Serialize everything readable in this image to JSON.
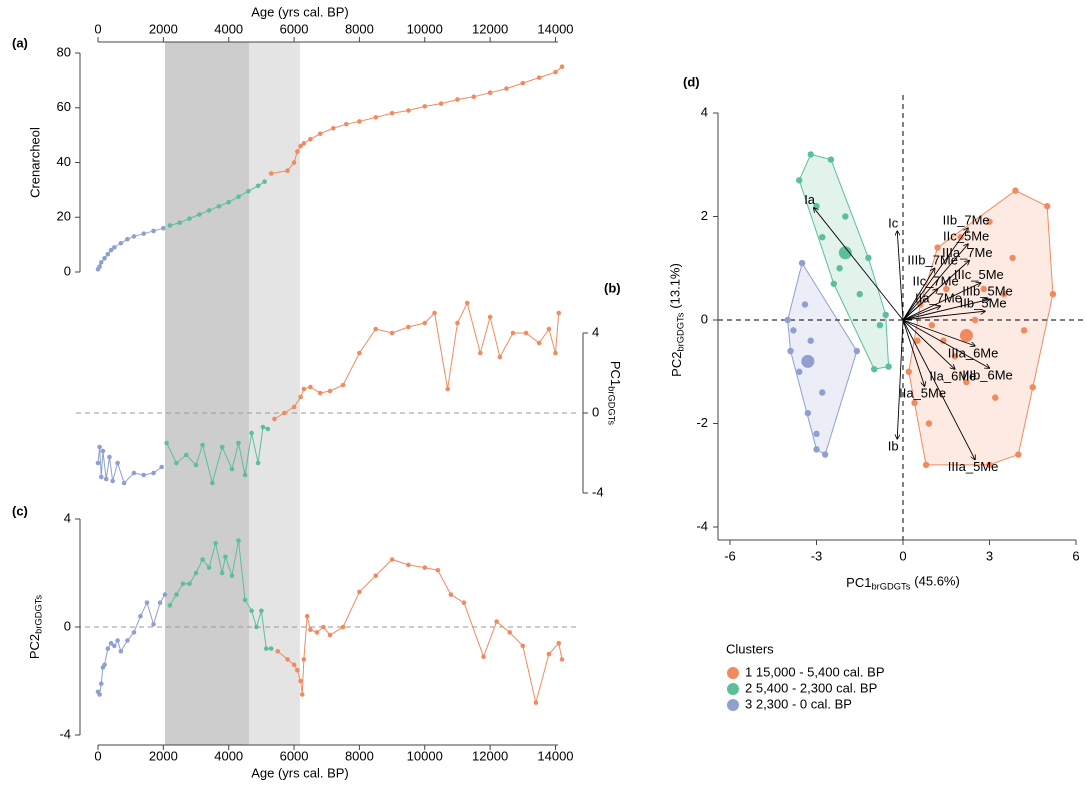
{
  "chart_data": [
    {
      "type": "line",
      "label": "(a)",
      "xlabel": "Age (yrs cal. BP)",
      "ylabel": "Crenarcheol",
      "xlim": [
        0,
        14200
      ],
      "xticks": [
        0,
        2000,
        4000,
        6000,
        8000,
        10000,
        12000,
        14000
      ],
      "ylim": [
        0,
        80
      ],
      "yticks": [
        0,
        20,
        40,
        60,
        80
      ],
      "shaded_ranges": [
        {
          "from": 2050,
          "to": 4620,
          "color": "#cdcdcd"
        },
        {
          "from": 4620,
          "to": 6180,
          "color": "#e4e4e4"
        }
      ],
      "series": [
        {
          "color": "#8fa0d0",
          "x": [
            0,
            50,
            100,
            200,
            300,
            400,
            500,
            700,
            900,
            1100,
            1400,
            1700,
            2000
          ],
          "values": [
            1,
            2,
            3.5,
            5,
            6.5,
            8,
            9,
            10.5,
            12,
            13,
            14,
            15,
            16
          ]
        },
        {
          "color": "#5cbf98",
          "x": [
            2200,
            2500,
            2800,
            3100,
            3400,
            3700,
            4000,
            4300,
            4600,
            4900,
            5100
          ],
          "values": [
            17,
            18,
            19.5,
            21,
            22.5,
            24,
            25.5,
            27.5,
            29.5,
            31.5,
            33
          ]
        },
        {
          "color": "#f28a5f",
          "x": [
            5300,
            5800,
            6000,
            6100,
            6200,
            6300,
            6500,
            6800,
            7200,
            7600,
            8000,
            8500,
            9000,
            9500,
            10000,
            10500,
            11000,
            11500,
            12000,
            12500,
            13000,
            13500,
            14000,
            14200
          ],
          "values": [
            36,
            37,
            40,
            44,
            46,
            47,
            48.5,
            50.5,
            52.5,
            54,
            55,
            56.5,
            58,
            59,
            60.5,
            61.5,
            63,
            64,
            65.5,
            67,
            69,
            71,
            73,
            75
          ]
        }
      ]
    },
    {
      "type": "line",
      "label": "(b)",
      "ylabel": {
        "text": "PC1",
        "sub": "brGDGTs"
      },
      "xlim": [
        0,
        14200
      ],
      "ylim": [
        -4,
        6
      ],
      "yticks": [
        -4,
        0,
        4
      ],
      "zero_line": true,
      "series": [
        {
          "color": "#8fa0d0",
          "x": [
            0,
            50,
            100,
            150,
            250,
            350,
            450,
            600,
            800,
            1100,
            1400,
            1700,
            1950
          ],
          "values": [
            -2.5,
            -1.7,
            -3.2,
            -1.9,
            -3.3,
            -2.2,
            -3.4,
            -2.5,
            -3.5,
            -3.0,
            -3.1,
            -3.0,
            -2.7
          ]
        },
        {
          "color": "#5cbf98",
          "x": [
            2100,
            2400,
            2700,
            3000,
            3200,
            3500,
            3800,
            4100,
            4300,
            4500,
            4700,
            4900,
            5050,
            5200
          ],
          "values": [
            -1.5,
            -2.5,
            -2.1,
            -2.6,
            -1.6,
            -3.5,
            -1.7,
            -2.8,
            -1.5,
            -3.1,
            -1.0,
            -2.5,
            -0.7,
            -0.8
          ]
        },
        {
          "color": "#f28a5f",
          "x": [
            5400,
            5700,
            6000,
            6200,
            6300,
            6500,
            6800,
            7100,
            7500,
            8000,
            8500,
            9000,
            9500,
            10000,
            10300,
            10700,
            11000,
            11300,
            11700,
            12000,
            12300,
            12700,
            13100,
            13500,
            13800,
            14000,
            14100
          ],
          "values": [
            -0.3,
            0,
            0.3,
            0.8,
            1.2,
            1.3,
            1.0,
            1.1,
            1.4,
            3.0,
            4.2,
            4.0,
            4.3,
            4.5,
            5.0,
            1.2,
            4.5,
            5.5,
            3.0,
            4.8,
            2.8,
            4.0,
            4.0,
            3.5,
            4.2,
            3.0,
            5.0
          ]
        }
      ]
    },
    {
      "type": "line",
      "label": "(c)",
      "xlabel": "Age (yrs cal. BP)",
      "ylabel": {
        "text": "PC2",
        "sub": "brGDGTs"
      },
      "xlim": [
        0,
        14200
      ],
      "xticks": [
        0,
        2000,
        4000,
        6000,
        8000,
        10000,
        12000,
        14000
      ],
      "ylim": [
        -4,
        4
      ],
      "yticks": [
        -4,
        0,
        4
      ],
      "zero_line": true,
      "series": [
        {
          "color": "#8fa0d0",
          "x": [
            0,
            50,
            100,
            150,
            200,
            300,
            400,
            500,
            600,
            700,
            900,
            1100,
            1300,
            1500,
            1700,
            1900,
            2050
          ],
          "values": [
            -2.4,
            -2.5,
            -2.1,
            -1.5,
            -1.4,
            -0.8,
            -0.6,
            -0.7,
            -0.5,
            -0.9,
            -0.5,
            -0.2,
            0.4,
            0.9,
            0.1,
            0.9,
            1.2
          ]
        },
        {
          "color": "#5cbf98",
          "x": [
            2200,
            2400,
            2600,
            2800,
            3000,
            3200,
            3400,
            3600,
            3800,
            3900,
            4100,
            4300,
            4500,
            4700,
            4850,
            5000,
            5150,
            5300
          ],
          "values": [
            0.8,
            1.2,
            1.6,
            1.6,
            2.0,
            2.5,
            2.2,
            3.1,
            2.0,
            2.6,
            1.9,
            3.2,
            1.0,
            0.6,
            0,
            0.6,
            -0.8,
            -0.8
          ]
        },
        {
          "color": "#f28a5f",
          "x": [
            5500,
            5800,
            6000,
            6100,
            6200,
            6250,
            6300,
            6400,
            6500,
            6700,
            6900,
            7100,
            7500,
            8000,
            8500,
            9000,
            9500,
            10000,
            10400,
            10800,
            11200,
            11800,
            12200,
            12600,
            13000,
            13400,
            13800,
            14100,
            14200
          ],
          "values": [
            -0.9,
            -1.2,
            -1.4,
            -1.6,
            -2.0,
            -2.5,
            -1.2,
            0.4,
            -0.1,
            -0.2,
            0,
            -0.3,
            0,
            1.3,
            1.9,
            2.5,
            2.3,
            2.2,
            2.1,
            1.2,
            0.9,
            -1.1,
            0.2,
            -0.2,
            -0.7,
            -2.8,
            -1.0,
            -0.6,
            -1.2
          ]
        }
      ]
    },
    {
      "type": "biplot",
      "label": "(d)",
      "xlabel": {
        "text": "PC1",
        "sub": "brGDGTs",
        "suffix": "(45.6%)"
      },
      "ylabel": {
        "text": "PC2",
        "sub": "brGDGTs",
        "suffix": "(13.1%)"
      },
      "xlim": [
        -6,
        6
      ],
      "xticks": [
        -6,
        -3,
        0,
        3,
        6
      ],
      "ylim": [
        -4,
        4
      ],
      "yticks": [
        -4,
        -2,
        0,
        2,
        4
      ],
      "zero_lines": true,
      "legend_title": "Clusters",
      "series": [
        {
          "name": "1  15,000 - 5,400 cal. BP",
          "color": "#f28a5f",
          "x": [
            3.9,
            5.0,
            5.2,
            4.5,
            4.0,
            3.0,
            0.8,
            0.4,
            0.2,
            0.5,
            1.2,
            2.0,
            3.0,
            1.5,
            1.0,
            2.5,
            3.5,
            4.2,
            1.8,
            2.2,
            3.2,
            0.6,
            1.4,
            0.9,
            2.8,
            3.8
          ],
          "values": [
            2.5,
            2.2,
            0.5,
            -1.3,
            -2.6,
            -2.8,
            -2.8,
            -1.6,
            -1.0,
            -0.4,
            1.4,
            1.6,
            1.9,
            0.6,
            -0.1,
            0.0,
            0.5,
            -0.2,
            -0.7,
            -1.2,
            -1.5,
            0.3,
            -0.4,
            -2.0,
            0.6,
            1.2
          ],
          "centroid": [
            2.2,
            -0.3
          ]
        },
        {
          "name": "2  5,400 - 2,300 cal. BP",
          "color": "#5cbf98",
          "x": [
            -3.2,
            -2.5,
            -3.6,
            -2.0,
            -1.2,
            -0.6,
            -0.5,
            -1.0,
            -2.8,
            -2.2,
            -1.5,
            -0.8,
            -3.0,
            -2.4
          ],
          "values": [
            3.2,
            3.1,
            2.7,
            2.0,
            1.2,
            0.1,
            -0.9,
            -0.95,
            1.6,
            1.0,
            0.5,
            -0.1,
            2.2,
            0.7
          ],
          "centroid": [
            -2.0,
            1.3
          ]
        },
        {
          "name": "3  2,300 - 0 cal. BP",
          "color": "#8fa0d0",
          "x": [
            -3.5,
            -4.0,
            -3.9,
            -3.3,
            -3.0,
            -2.7,
            -1.6,
            -3.2,
            -3.6,
            -2.8,
            -3.4,
            -3.0,
            -3.8
          ],
          "values": [
            1.1,
            0,
            -0.6,
            -1.8,
            -2.5,
            -2.6,
            -0.6,
            -0.4,
            -1.0,
            -1.4,
            0.3,
            -2.2,
            -0.2
          ],
          "centroid": [
            -3.3,
            -0.8
          ]
        }
      ],
      "loadings": [
        {
          "name": "Ia",
          "x": -3.1,
          "y": 2.17
        },
        {
          "name": "Ic",
          "x": -0.2,
          "y": 1.72
        },
        {
          "name": "Ib",
          "x": -0.2,
          "y": -2.3
        },
        {
          "name": "IIb_7Me",
          "x": 2.26,
          "y": 1.78
        },
        {
          "name": "IIc_5Me",
          "x": 2.26,
          "y": 1.47
        },
        {
          "name": "IIIa_7Me",
          "x": 2.3,
          "y": 1.15
        },
        {
          "name": "IIIb_7Me",
          "x": 1.1,
          "y": 1.0
        },
        {
          "name": "IIIc_5Me",
          "x": 2.7,
          "y": 0.72
        },
        {
          "name": "IIc_7Me",
          "x": 1.2,
          "y": 0.6
        },
        {
          "name": "IIIb_5Me",
          "x": 3.0,
          "y": 0.4
        },
        {
          "name": "IIa_7Me",
          "x": 1.3,
          "y": 0.27
        },
        {
          "name": "IIb_5Me",
          "x": 2.85,
          "y": 0.17
        },
        {
          "name": "IIIa_6Me",
          "x": 2.5,
          "y": -0.5
        },
        {
          "name": "IIa_6Me",
          "x": 1.8,
          "y": -0.95
        },
        {
          "name": "IIIb_6Me",
          "x": 3.0,
          "y": -0.93
        },
        {
          "name": "IIa_5Me",
          "x": 0.75,
          "y": -1.28
        },
        {
          "name": "IIIa_5Me",
          "x": 2.5,
          "y": -2.7
        }
      ]
    }
  ]
}
